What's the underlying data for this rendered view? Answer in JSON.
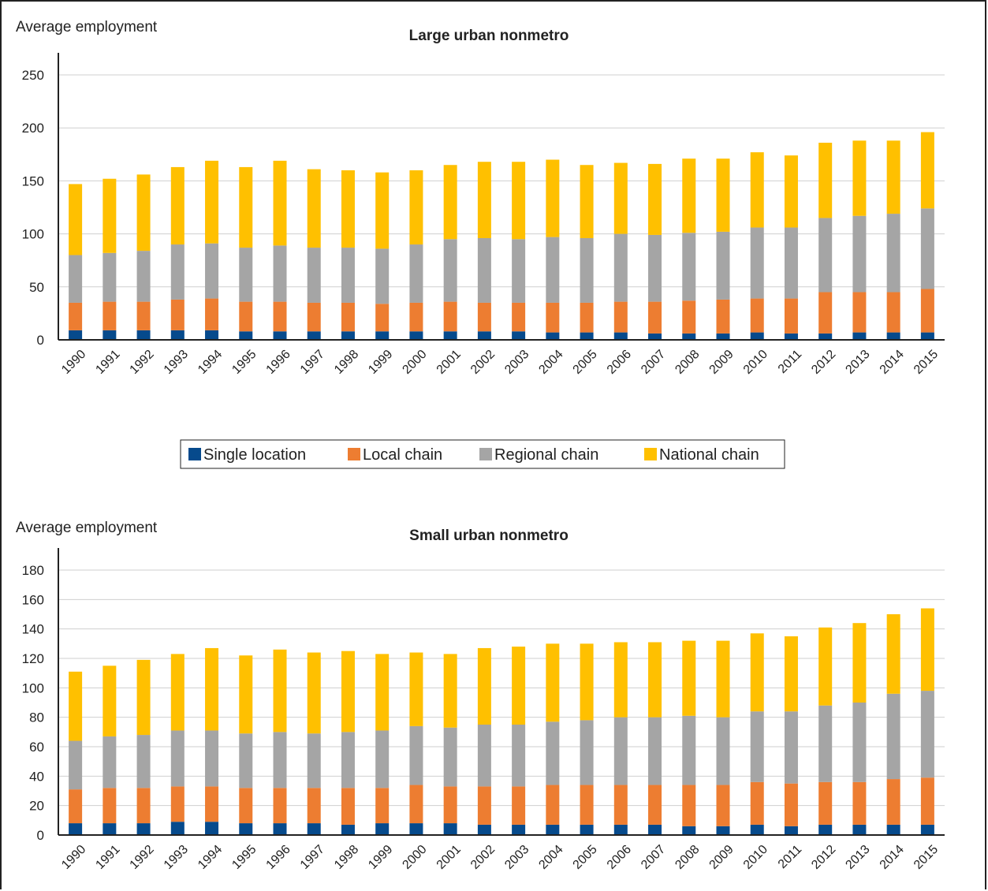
{
  "legend": [
    {
      "name": "Single location",
      "color": "#064a8c"
    },
    {
      "name": "Local chain",
      "color": "#ed7d31"
    },
    {
      "name": "Regional chain",
      "color": "#a5a5a5"
    },
    {
      "name": "National chain",
      "color": "#ffc000"
    }
  ],
  "chart_data": [
    {
      "type": "bar",
      "stacked": true,
      "title": "Large urban nonmetro",
      "ylabel": "Average employment",
      "ylim": [
        0,
        250
      ],
      "yticks": [
        0,
        50,
        100,
        150,
        200,
        250
      ],
      "categories": [
        "1990",
        "1991",
        "1992",
        "1993",
        "1994",
        "1995",
        "1996",
        "1997",
        "1998",
        "1999",
        "2000",
        "2001",
        "2002",
        "2003",
        "2004",
        "2005",
        "2006",
        "2007",
        "2008",
        "2009",
        "2010",
        "2011",
        "2012",
        "2013",
        "2014",
        "2015"
      ],
      "series": [
        {
          "name": "Single location",
          "values": [
            9,
            9,
            9,
            9,
            9,
            8,
            8,
            8,
            8,
            8,
            8,
            8,
            8,
            8,
            7,
            7,
            7,
            6,
            6,
            6,
            7,
            6,
            6,
            7,
            7,
            7
          ]
        },
        {
          "name": "Local chain",
          "values": [
            26,
            27,
            27,
            29,
            30,
            28,
            28,
            27,
            27,
            26,
            27,
            28,
            27,
            27,
            28,
            28,
            29,
            30,
            31,
            32,
            32,
            33,
            39,
            38,
            38,
            41
          ]
        },
        {
          "name": "Regional chain",
          "values": [
            45,
            46,
            48,
            52,
            52,
            51,
            53,
            52,
            52,
            52,
            55,
            59,
            61,
            60,
            62,
            61,
            64,
            63,
            64,
            64,
            67,
            67,
            70,
            72,
            74,
            76
          ]
        },
        {
          "name": "National chain",
          "values": [
            67,
            70,
            72,
            73,
            78,
            76,
            80,
            74,
            73,
            72,
            70,
            70,
            72,
            73,
            73,
            69,
            67,
            67,
            70,
            69,
            71,
            68,
            71,
            71,
            69,
            72
          ]
        }
      ]
    },
    {
      "type": "bar",
      "stacked": true,
      "title": "Small urban nonmetro",
      "ylabel": "Average employment",
      "ylim": [
        0,
        180
      ],
      "yticks": [
        0,
        20,
        40,
        60,
        80,
        100,
        120,
        140,
        160,
        180
      ],
      "categories": [
        "1990",
        "1991",
        "1992",
        "1993",
        "1994",
        "1995",
        "1996",
        "1997",
        "1998",
        "1999",
        "2000",
        "2001",
        "2002",
        "2003",
        "2004",
        "2005",
        "2006",
        "2007",
        "2008",
        "2009",
        "2010",
        "2011",
        "2012",
        "2013",
        "2014",
        "2015"
      ],
      "series": [
        {
          "name": "Single location",
          "values": [
            8,
            8,
            8,
            9,
            9,
            8,
            8,
            8,
            7,
            8,
            8,
            8,
            7,
            7,
            7,
            7,
            7,
            7,
            6,
            6,
            7,
            6,
            7,
            7,
            7,
            7
          ]
        },
        {
          "name": "Local chain",
          "values": [
            23,
            24,
            24,
            24,
            24,
            24,
            24,
            24,
            25,
            24,
            26,
            25,
            26,
            26,
            27,
            27,
            27,
            27,
            28,
            28,
            29,
            29,
            29,
            29,
            31,
            32
          ]
        },
        {
          "name": "Regional chain",
          "values": [
            33,
            35,
            36,
            38,
            38,
            37,
            38,
            37,
            38,
            39,
            40,
            40,
            42,
            42,
            43,
            44,
            46,
            46,
            47,
            46,
            48,
            49,
            52,
            54,
            58,
            59
          ]
        },
        {
          "name": "National chain",
          "values": [
            47,
            48,
            51,
            52,
            56,
            53,
            56,
            55,
            55,
            52,
            50,
            50,
            52,
            53,
            53,
            52,
            51,
            51,
            51,
            52,
            53,
            51,
            53,
            54,
            54,
            56
          ]
        }
      ]
    }
  ]
}
